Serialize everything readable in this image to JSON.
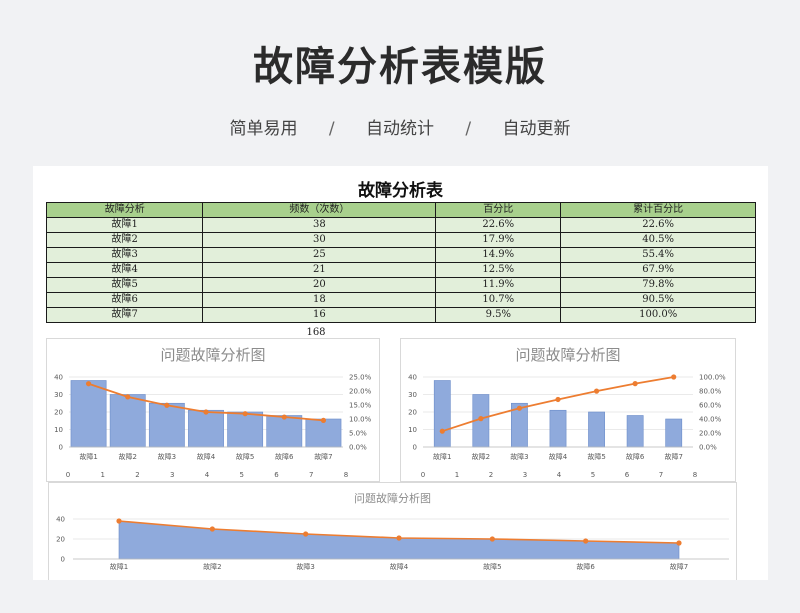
{
  "header": {
    "title": "故障分析表模版",
    "tags": [
      "简单易用",
      "自动统计",
      "自动更新"
    ],
    "separator": "/"
  },
  "sheet": {
    "title": "故障分析表",
    "columns": [
      "故障分析",
      "频数（次数）",
      "百分比",
      "累计百分比"
    ],
    "rows": [
      [
        "故障1",
        "38",
        "22.6%",
        "22.6%"
      ],
      [
        "故障2",
        "30",
        "17.9%",
        "40.5%"
      ],
      [
        "故障3",
        "25",
        "14.9%",
        "55.4%"
      ],
      [
        "故障4",
        "21",
        "12.5%",
        "67.9%"
      ],
      [
        "故障5",
        "20",
        "11.9%",
        "79.8%"
      ],
      [
        "故障6",
        "18",
        "10.7%",
        "90.5%"
      ],
      [
        "故障7",
        "16",
        "9.5%",
        "100.0%"
      ]
    ],
    "total": "168"
  },
  "colors": {
    "bar": "#8faadc",
    "bar_stroke": "#6b8cc9",
    "line": "#ed7d31",
    "header_green": "#a8d08d",
    "cell_green": "#e2efda"
  },
  "chart_data": [
    {
      "type": "bar",
      "title": "问题故障分析图",
      "categories": [
        "故障1",
        "故障2",
        "故障3",
        "故障4",
        "故障5",
        "故障6",
        "故障7"
      ],
      "series": [
        {
          "values": [
            38,
            30,
            25,
            21,
            20,
            18,
            16
          ],
          "axis": "left",
          "kind": "bar"
        },
        {
          "values": [
            22.6,
            17.9,
            14.9,
            12.5,
            11.9,
            10.7,
            9.5
          ],
          "axis": "right",
          "kind": "line"
        }
      ],
      "ylim": [
        0,
        40
      ],
      "yticks": [
        0,
        10,
        20,
        30,
        40
      ],
      "y2lim": [
        0,
        25
      ],
      "y2ticks": [
        "0.0%",
        "5.0%",
        "10.0%",
        "15.0%",
        "20.0%",
        "25.0%"
      ],
      "x2ticks": [
        "0",
        "1",
        "2",
        "3",
        "4",
        "5",
        "6",
        "7",
        "8"
      ],
      "bar_width": "wide"
    },
    {
      "type": "bar",
      "title": "问题故障分析图",
      "categories": [
        "故障1",
        "故障2",
        "故障3",
        "故障4",
        "故障5",
        "故障6",
        "故障7"
      ],
      "series": [
        {
          "values": [
            38,
            30,
            25,
            21,
            20,
            18,
            16
          ],
          "axis": "left",
          "kind": "bar"
        },
        {
          "values": [
            22.6,
            40.5,
            55.4,
            67.9,
            79.8,
            90.5,
            100.0
          ],
          "axis": "right",
          "kind": "line"
        }
      ],
      "ylim": [
        0,
        40
      ],
      "yticks": [
        0,
        10,
        20,
        30,
        40
      ],
      "y2lim": [
        0,
        100
      ],
      "y2ticks": [
        "0.0%",
        "20.0%",
        "40.0%",
        "60.0%",
        "80.0%",
        "100.0%"
      ],
      "x2ticks": [
        "0",
        "1",
        "2",
        "3",
        "4",
        "5",
        "6",
        "7",
        "8"
      ],
      "bar_width": "narrow"
    },
    {
      "type": "area",
      "title": "问题故障分析图",
      "categories": [
        "故障1",
        "故障2",
        "故障3",
        "故障4",
        "故障5",
        "故障6",
        "故障7"
      ],
      "series": [
        {
          "values": [
            38,
            30,
            25,
            21,
            20,
            18,
            16
          ],
          "kind": "area"
        }
      ],
      "ylim": [
        0,
        40
      ],
      "yticks": [
        0,
        20,
        40
      ]
    }
  ]
}
